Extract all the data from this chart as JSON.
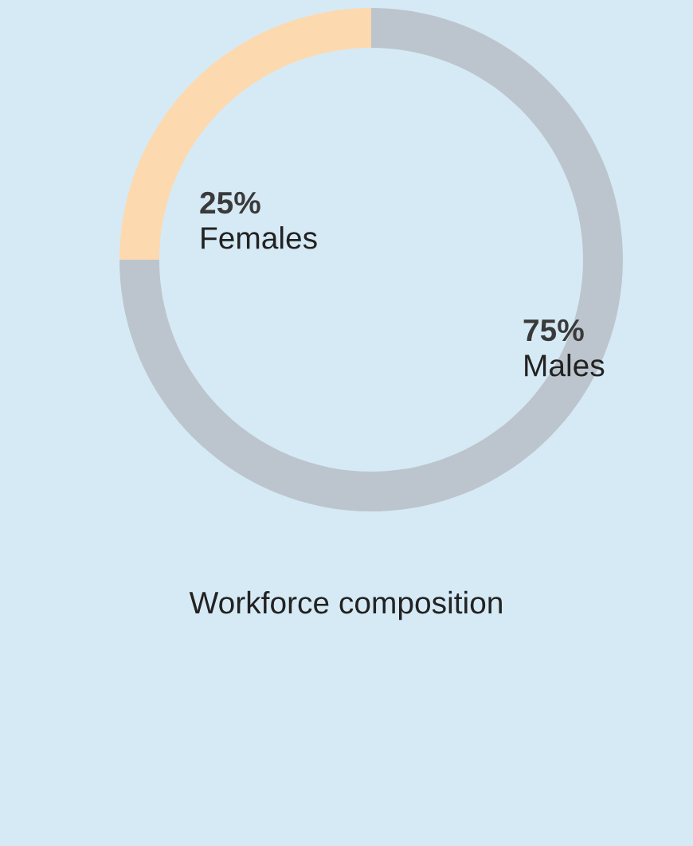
{
  "chart_data": {
    "type": "donut",
    "title": "Workforce composition",
    "categories": [
      "Females",
      "Males"
    ],
    "values": [
      25,
      75
    ],
    "colors": [
      "#fdd9b0",
      "#bcc5ce"
    ],
    "value_labels": [
      "25%",
      "75%"
    ]
  }
}
